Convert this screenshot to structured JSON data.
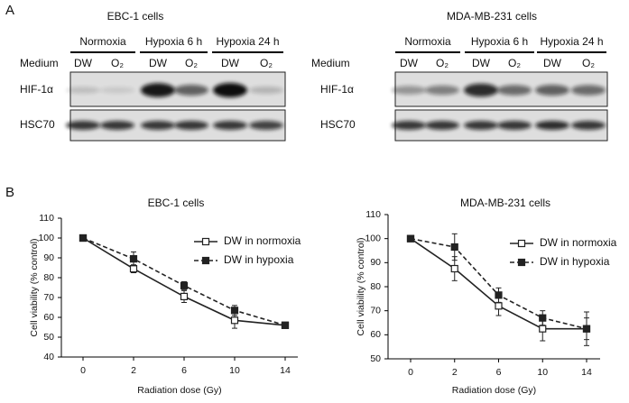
{
  "panel_labels": [
    "A",
    "B"
  ],
  "blots": [
    {
      "title": "EBC-1 cells",
      "conditions": [
        "Normoxia",
        "Hypoxia 6 h",
        "Hypoxia 24 h"
      ],
      "medium_label": "Medium",
      "lanes": [
        "DW",
        "O₂",
        "DW",
        "O₂",
        "DW",
        "O₂"
      ],
      "rows": [
        "HIF-1α",
        "HSC70"
      ]
    },
    {
      "title": "MDA-MB-231 cells",
      "conditions": [
        "Normoxia",
        "Hypoxia 6 h",
        "Hypoxia 24 h"
      ],
      "medium_label": "Medium",
      "lanes": [
        "DW",
        "O₂",
        "DW",
        "O₂",
        "DW",
        "O₂"
      ],
      "rows": [
        "HIF-1α",
        "HSC70"
      ]
    }
  ],
  "chart_data": [
    {
      "type": "line",
      "title": "EBC-1 cells",
      "x_label": "Radiation dose (Gy)",
      "y_label": "Cell viability (% control)",
      "categories": [
        "0",
        "2",
        "6",
        "10",
        "14"
      ],
      "ylim": [
        40,
        110
      ],
      "yticks": [
        40,
        50,
        60,
        70,
        80,
        90,
        100,
        110
      ],
      "legend": "upper right",
      "series": [
        {
          "name": "DW in normoxia",
          "color": "#222222",
          "dashed": false,
          "filled": false,
          "values": [
            100,
            84.5,
            70.5,
            58.5,
            56
          ],
          "errors": [
            0.5,
            2,
            3,
            4,
            1.5
          ]
        },
        {
          "name": "DW in hypoxia",
          "color": "#222222",
          "dashed": true,
          "filled": true,
          "values": [
            100,
            89.5,
            76,
            63.5,
            56
          ],
          "errors": [
            0.5,
            3.5,
            2,
            2.5,
            1
          ]
        }
      ]
    },
    {
      "type": "line",
      "title": "MDA-MB-231 cells",
      "x_label": "Radiation dose (Gy)",
      "y_label": "Cell viability (% control)",
      "categories": [
        "0",
        "2",
        "6",
        "10",
        "14"
      ],
      "ylim": [
        50,
        110
      ],
      "yticks": [
        50,
        60,
        70,
        80,
        90,
        100,
        110
      ],
      "legend": "upper right",
      "series": [
        {
          "name": "DW in normoxia",
          "color": "#222222",
          "dashed": false,
          "filled": false,
          "values": [
            100,
            87.5,
            72,
            62.5,
            62.5
          ],
          "errors": [
            0.5,
            5,
            4,
            5,
            4.5
          ]
        },
        {
          "name": "DW in hypoxia",
          "color": "#222222",
          "dashed": true,
          "filled": true,
          "values": [
            100,
            96.5,
            76.5,
            67,
            62.5
          ],
          "errors": [
            0.5,
            5.5,
            3,
            3,
            7
          ]
        }
      ]
    }
  ]
}
